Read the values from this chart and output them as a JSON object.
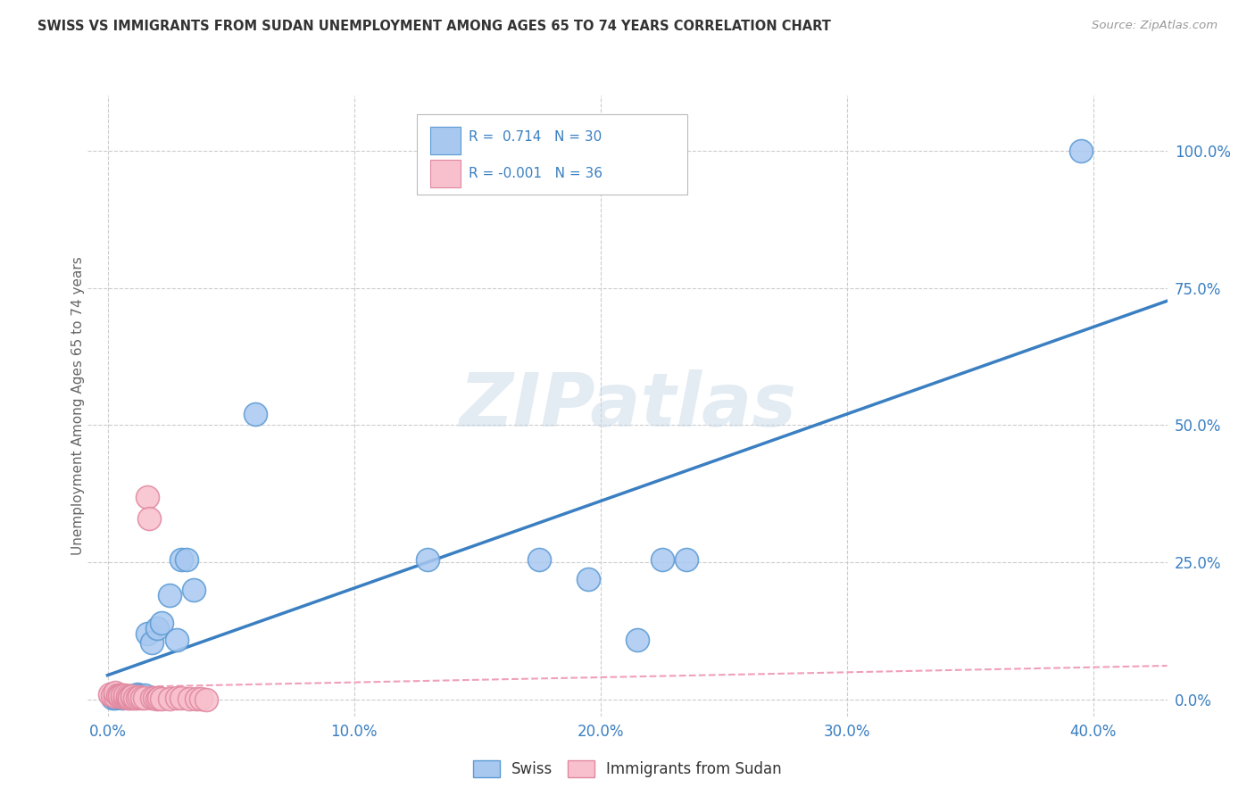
{
  "title": "SWISS VS IMMIGRANTS FROM SUDAN UNEMPLOYMENT AMONG AGES 65 TO 74 YEARS CORRELATION CHART",
  "source": "Source: ZipAtlas.com",
  "ylabel": "Unemployment Among Ages 65 to 74 years",
  "xlabel_ticks": [
    "0.0%",
    "10.0%",
    "20.0%",
    "30.0%",
    "40.0%"
  ],
  "xlabel_tick_vals": [
    0.0,
    0.1,
    0.2,
    0.3,
    0.4
  ],
  "ylabel_ticks": [
    "0.0%",
    "25.0%",
    "50.0%",
    "75.0%",
    "100.0%"
  ],
  "ylabel_tick_vals": [
    0.0,
    0.25,
    0.5,
    0.75,
    1.0
  ],
  "xlim": [
    -0.008,
    0.43
  ],
  "ylim": [
    -0.03,
    1.1
  ],
  "swiss_color": "#A8C8F0",
  "swiss_edge_color": "#5A9AD4",
  "sudan_color": "#F8C0CC",
  "sudan_edge_color": "#E088A0",
  "swiss_line_color": "#3A7FC1",
  "sudan_line_color": "#F0A0B8",
  "watermark_text": "ZIPatlas",
  "swiss_R": "0.714",
  "swiss_N": "30",
  "sudan_R": "-0.001",
  "sudan_N": "36",
  "swiss_x": [
    0.002,
    0.003,
    0.004,
    0.005,
    0.006,
    0.007,
    0.008,
    0.009,
    0.01,
    0.011,
    0.012,
    0.013,
    0.015,
    0.016,
    0.018,
    0.02,
    0.022,
    0.025,
    0.028,
    0.03,
    0.032,
    0.035,
    0.06,
    0.13,
    0.175,
    0.195,
    0.215,
    0.225,
    0.235,
    0.395
  ],
  "swiss_y": [
    0.003,
    0.004,
    0.006,
    0.005,
    0.004,
    0.006,
    0.005,
    0.007,
    0.006,
    0.008,
    0.01,
    0.008,
    0.008,
    0.12,
    0.105,
    0.13,
    0.14,
    0.19,
    0.11,
    0.255,
    0.255,
    0.2,
    0.52,
    0.255,
    0.255,
    0.22,
    0.11,
    0.255,
    0.255,
    1.0
  ],
  "sudan_x": [
    0.001,
    0.002,
    0.003,
    0.003,
    0.004,
    0.005,
    0.005,
    0.006,
    0.006,
    0.007,
    0.007,
    0.008,
    0.008,
    0.009,
    0.009,
    0.01,
    0.01,
    0.011,
    0.012,
    0.013,
    0.014,
    0.015,
    0.016,
    0.017,
    0.018,
    0.019,
    0.02,
    0.021,
    0.022,
    0.025,
    0.028,
    0.03,
    0.033,
    0.036,
    0.038,
    0.04
  ],
  "sudan_y": [
    0.01,
    0.008,
    0.007,
    0.013,
    0.009,
    0.008,
    0.007,
    0.006,
    0.008,
    0.005,
    0.009,
    0.004,
    0.007,
    0.006,
    0.004,
    0.004,
    0.007,
    0.003,
    0.004,
    0.005,
    0.004,
    0.004,
    0.37,
    0.33,
    0.004,
    0.003,
    0.002,
    0.004,
    0.002,
    0.002,
    0.003,
    0.003,
    0.002,
    0.002,
    0.002,
    0.001
  ],
  "background_color": "#FFFFFF",
  "grid_color": "#CCCCCC",
  "legend_text_color": "#3A7FC1",
  "axis_label_color": "#3A7FC1",
  "ylabel_color": "#666666",
  "title_color": "#333333"
}
